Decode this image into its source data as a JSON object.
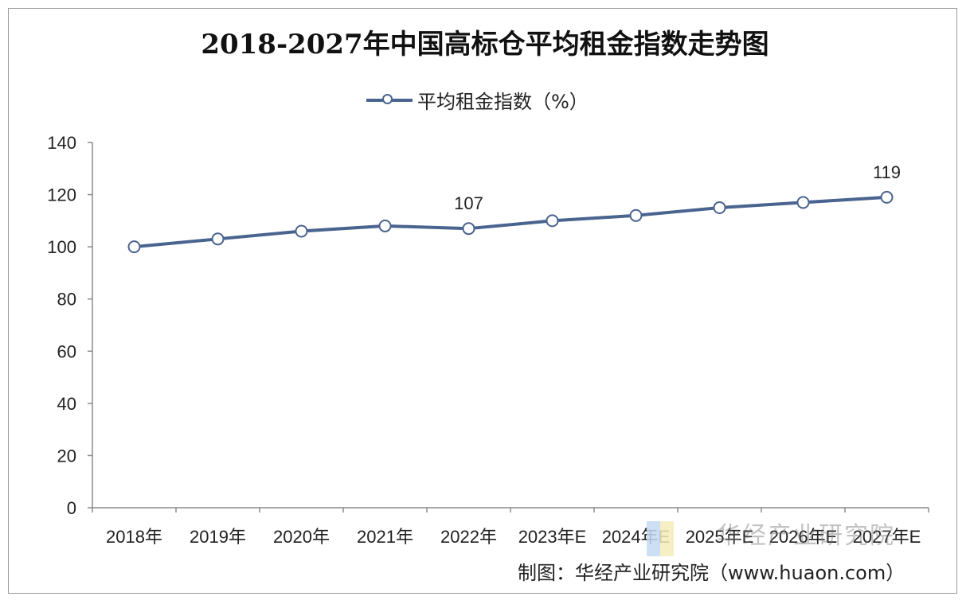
{
  "chart_data": {
    "type": "line",
    "title": "2018-2027年中国高标仓平均租金指数走势图",
    "categories": [
      "2018年",
      "2019年",
      "2020年",
      "2021年",
      "2022年",
      "2023年E",
      "2024年E",
      "2025年E",
      "2026年E",
      "2027年E"
    ],
    "series": [
      {
        "name": "平均租金指数（%）",
        "values": [
          100,
          103,
          106,
          108,
          107,
          110,
          112,
          115,
          117,
          119
        ]
      }
    ],
    "data_labels": [
      {
        "index": 4,
        "text": "107"
      },
      {
        "index": 9,
        "text": "119"
      }
    ],
    "ylim": [
      0,
      140
    ],
    "yticks": [
      0,
      20,
      40,
      60,
      80,
      100,
      120,
      140
    ],
    "grid": false,
    "legend_position": "top-center",
    "line_color": "#4a6490"
  },
  "watermark": "华经产业研究院",
  "source": "制图：华经产业研究院（www.huaon.com）"
}
